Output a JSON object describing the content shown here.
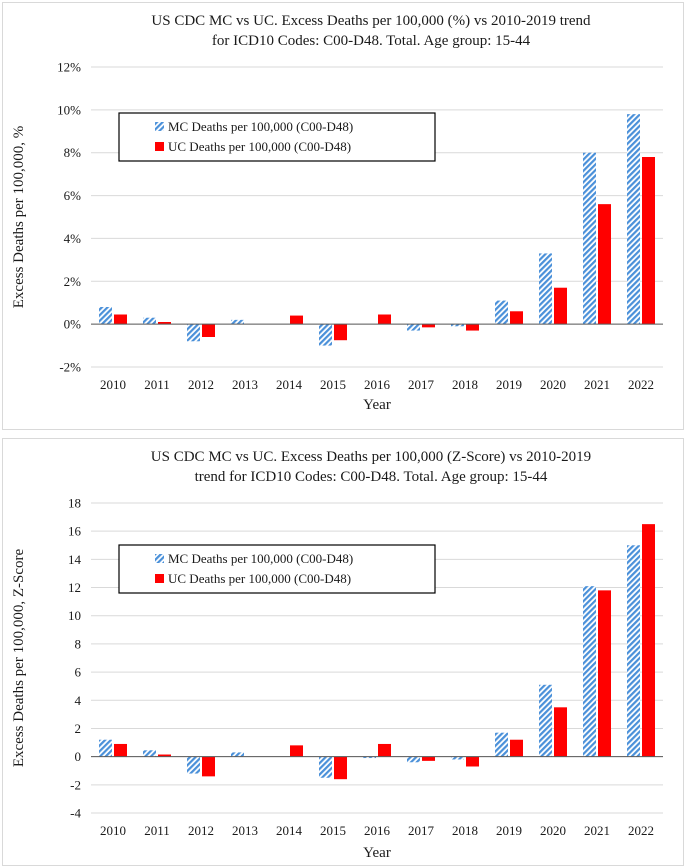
{
  "colors": {
    "mc": "#4a90d9",
    "uc": "#ff0000",
    "grid": "#d9d9d9",
    "axis": "#595959"
  },
  "chart_data": [
    {
      "type": "bar",
      "title_lines": [
        "US CDC MC vs UC. Excess Deaths per 100,000 (%) vs 2010-2019 trend",
        "for ICD10 Codes: C00-D48. Total. Age group: 15-44"
      ],
      "xlabel": "Year",
      "ylabel": "Excess Deaths per 100,000, %",
      "ylim": [
        -2,
        12
      ],
      "yticks": [
        -2,
        0,
        2,
        4,
        6,
        8,
        10,
        12
      ],
      "ytick_labels": [
        "-2%",
        "0%",
        "2%",
        "4%",
        "6%",
        "8%",
        "10%",
        "12%"
      ],
      "grid": true,
      "legend_position": "top-left",
      "categories": [
        "2010",
        "2011",
        "2012",
        "2013",
        "2014",
        "2015",
        "2016",
        "2017",
        "2018",
        "2019",
        "2020",
        "2021",
        "2022"
      ],
      "series": [
        {
          "name": "MC Deaths per 100,000 (C00-D48)",
          "style": "hatched",
          "values": [
            0.8,
            0.3,
            -0.8,
            0.2,
            0.0,
            -1.0,
            0.0,
            -0.3,
            -0.1,
            1.1,
            3.3,
            8.0,
            9.8
          ]
        },
        {
          "name": "UC Deaths per 100,000 (C00-D48)",
          "style": "solid",
          "values": [
            0.45,
            0.1,
            -0.6,
            0.0,
            0.4,
            -0.75,
            0.45,
            -0.15,
            -0.3,
            0.6,
            1.7,
            5.6,
            7.8
          ]
        }
      ]
    },
    {
      "type": "bar",
      "title_lines": [
        "US CDC MC vs UC. Excess Deaths per 100,000 (Z-Score) vs 2010-2019",
        "trend for ICD10 Codes: C00-D48. Total. Age group: 15-44"
      ],
      "xlabel": "Year",
      "ylabel": "Excess Deaths per 100,000, Z-Score",
      "ylim": [
        -4,
        18
      ],
      "yticks": [
        -4,
        -2,
        0,
        2,
        4,
        6,
        8,
        10,
        12,
        14,
        16,
        18
      ],
      "ytick_labels": [
        "-4",
        "-2",
        "0",
        "2",
        "4",
        "6",
        "8",
        "10",
        "12",
        "14",
        "16",
        "18"
      ],
      "grid": true,
      "legend_position": "top-left",
      "categories": [
        "2010",
        "2011",
        "2012",
        "2013",
        "2014",
        "2015",
        "2016",
        "2017",
        "2018",
        "2019",
        "2020",
        "2021",
        "2022"
      ],
      "series": [
        {
          "name": "MC Deaths per 100,000 (C00-D48)",
          "style": "hatched",
          "values": [
            1.2,
            0.45,
            -1.2,
            0.3,
            0.0,
            -1.5,
            -0.1,
            -0.4,
            -0.2,
            1.7,
            5.1,
            12.1,
            15.0
          ]
        },
        {
          "name": "UC Deaths per 100,000 (C00-D48)",
          "style": "solid",
          "values": [
            0.9,
            0.15,
            -1.4,
            0.0,
            0.8,
            -1.6,
            0.9,
            -0.3,
            -0.7,
            1.2,
            3.5,
            11.8,
            16.5
          ]
        }
      ]
    }
  ]
}
